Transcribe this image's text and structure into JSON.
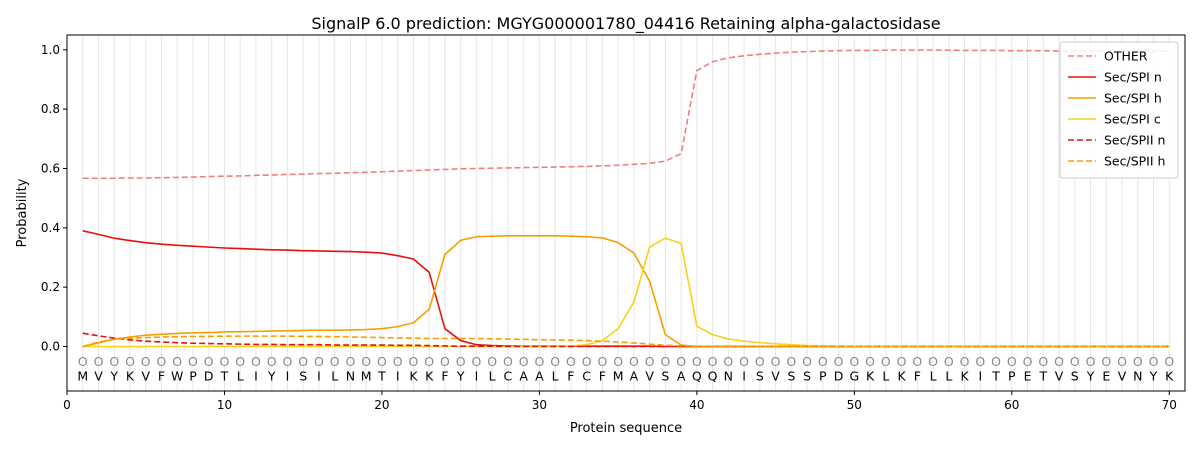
{
  "chart_data": {
    "type": "line",
    "title": "SignalP 6.0 prediction: MGYG000001780_04416 Retaining alpha-galactosidase",
    "xlabel": "Protein sequence",
    "ylabel": "Probability",
    "xlim": [
      0,
      71
    ],
    "ylim": [
      -0.15,
      1.05
    ],
    "xticks": [
      0,
      10,
      20,
      30,
      40,
      50,
      60,
      70
    ],
    "yticks": [
      0.0,
      0.2,
      0.4,
      0.6,
      0.8,
      1.0
    ],
    "ytick_labels": [
      "0.0",
      "0.2",
      "0.4",
      "0.6",
      "0.8",
      "1.0"
    ],
    "grid": "vertical lines at every residue",
    "legend_position": "top-right",
    "sequence": [
      "M",
      "V",
      "Y",
      "K",
      "V",
      "F",
      "W",
      "P",
      "D",
      "T",
      "L",
      "I",
      "Y",
      "I",
      "S",
      "I",
      "L",
      "N",
      "M",
      "T",
      "I",
      "K",
      "K",
      "F",
      "Y",
      "I",
      "L",
      "C",
      "A",
      "A",
      "L",
      "F",
      "C",
      "F",
      "M",
      "A",
      "V",
      "S",
      "A",
      "Q",
      "Q",
      "N",
      "I",
      "S",
      "V",
      "S",
      "S",
      "P",
      "D",
      "G",
      "K",
      "L",
      "K",
      "F",
      "L",
      "L",
      "K",
      "I",
      "T",
      "P",
      "E",
      "T",
      "V",
      "S",
      "Y",
      "E",
      "V",
      "N",
      "Y",
      "K"
    ],
    "region_marker": "O",
    "series": [
      {
        "name": "OTHER",
        "color": "#f08080",
        "dash": "dashed",
        "values": [
          0.567,
          0.567,
          0.567,
          0.568,
          0.568,
          0.569,
          0.57,
          0.571,
          0.573,
          0.574,
          0.575,
          0.577,
          0.578,
          0.58,
          0.581,
          0.583,
          0.584,
          0.586,
          0.587,
          0.589,
          0.591,
          0.593,
          0.595,
          0.597,
          0.599,
          0.6,
          0.601,
          0.602,
          0.603,
          0.604,
          0.605,
          0.606,
          0.607,
          0.609,
          0.611,
          0.614,
          0.617,
          0.625,
          0.65,
          0.93,
          0.96,
          0.973,
          0.98,
          0.985,
          0.989,
          0.992,
          0.994,
          0.996,
          0.997,
          0.998,
          0.998,
          0.999,
          0.999,
          0.999,
          0.999,
          0.999,
          0.998,
          0.998,
          0.998,
          0.997,
          0.997,
          0.997,
          0.996,
          0.996,
          0.996,
          0.996,
          0.995,
          0.995,
          0.995,
          0.995
        ]
      },
      {
        "name": "Sec/SPI n",
        "color": "#e8100c",
        "dash": "solid",
        "values": [
          0.39,
          0.378,
          0.365,
          0.357,
          0.35,
          0.345,
          0.341,
          0.338,
          0.335,
          0.332,
          0.33,
          0.328,
          0.326,
          0.325,
          0.323,
          0.322,
          0.321,
          0.32,
          0.318,
          0.315,
          0.306,
          0.295,
          0.25,
          0.06,
          0.02,
          0.006,
          0.003,
          0.002,
          0.001,
          0.001,
          0.001,
          0.001,
          0.001,
          0.001,
          0.001,
          0.001,
          0.001,
          0.0,
          0.0,
          0.0,
          0.0,
          0.0,
          0.0,
          0.0,
          0.0,
          0.0,
          0.0,
          0.0,
          0.0,
          0.0,
          0.0,
          0.0,
          0.0,
          0.0,
          0.0,
          0.0,
          0.0,
          0.0,
          0.0,
          0.0,
          0.0,
          0.0,
          0.0,
          0.0,
          0.0,
          0.0,
          0.0,
          0.0,
          0.0,
          0.0
        ]
      },
      {
        "name": "Sec/SPI h",
        "color": "#f5a000",
        "dash": "solid",
        "values": [
          0.0,
          0.012,
          0.025,
          0.032,
          0.038,
          0.041,
          0.044,
          0.046,
          0.047,
          0.049,
          0.05,
          0.051,
          0.052,
          0.053,
          0.054,
          0.055,
          0.055,
          0.056,
          0.057,
          0.06,
          0.067,
          0.08,
          0.125,
          0.31,
          0.358,
          0.37,
          0.372,
          0.373,
          0.373,
          0.373,
          0.373,
          0.372,
          0.37,
          0.366,
          0.35,
          0.315,
          0.22,
          0.04,
          0.005,
          0.0,
          0.0,
          0.0,
          0.0,
          0.0,
          0.0,
          0.0,
          0.0,
          0.0,
          0.0,
          0.0,
          0.0,
          0.0,
          0.0,
          0.0,
          0.0,
          0.0,
          0.0,
          0.0,
          0.0,
          0.0,
          0.0,
          0.0,
          0.0,
          0.0,
          0.0,
          0.0,
          0.0,
          0.0,
          0.0,
          0.0
        ]
      },
      {
        "name": "Sec/SPI c",
        "color": "#f7d21b",
        "dash": "solid",
        "values": [
          0.0,
          0.0,
          0.0,
          0.0,
          0.0,
          0.0,
          0.0,
          0.0,
          0.0,
          0.0,
          0.0,
          0.0,
          0.0,
          0.0,
          0.0,
          0.0,
          0.0,
          0.0,
          0.0,
          0.0,
          0.0,
          0.0,
          0.0,
          0.0,
          0.0,
          0.0,
          0.0,
          0.0,
          0.0,
          0.0,
          0.0,
          0.002,
          0.006,
          0.02,
          0.06,
          0.15,
          0.335,
          0.365,
          0.348,
          0.068,
          0.04,
          0.025,
          0.018,
          0.013,
          0.009,
          0.006,
          0.003,
          0.002,
          0.001,
          0.001,
          0.0,
          0.0,
          0.0,
          0.0,
          0.0,
          0.0,
          0.0,
          0.0,
          0.0,
          0.0,
          0.0,
          0.0,
          0.0,
          0.0,
          0.0,
          0.0,
          0.0,
          0.0,
          0.0,
          0.0
        ]
      },
      {
        "name": "Sec/SPII n",
        "color": "#e8100c",
        "dash": "dashed",
        "values": [
          0.045,
          0.036,
          0.028,
          0.022,
          0.018,
          0.015,
          0.013,
          0.011,
          0.01,
          0.009,
          0.008,
          0.007,
          0.007,
          0.006,
          0.006,
          0.006,
          0.005,
          0.005,
          0.005,
          0.005,
          0.004,
          0.004,
          0.003,
          0.002,
          0.001,
          0.001,
          0.001,
          0.0,
          0.0,
          0.0,
          0.0,
          0.0,
          0.0,
          0.0,
          0.0,
          0.0,
          0.0,
          0.0,
          0.0,
          0.0,
          0.0,
          0.0,
          0.0,
          0.0,
          0.0,
          0.0,
          0.0,
          0.0,
          0.0,
          0.0,
          0.0,
          0.0,
          0.0,
          0.0,
          0.0,
          0.0,
          0.0,
          0.0,
          0.0,
          0.0,
          0.0,
          0.0,
          0.0,
          0.0,
          0.0,
          0.0,
          0.0,
          0.0,
          0.0,
          0.0
        ]
      },
      {
        "name": "Sec/SPII h",
        "color": "#f5a000",
        "dash": "dashed",
        "values": [
          0.0,
          0.015,
          0.024,
          0.028,
          0.03,
          0.032,
          0.033,
          0.034,
          0.034,
          0.035,
          0.035,
          0.035,
          0.035,
          0.035,
          0.034,
          0.034,
          0.033,
          0.032,
          0.031,
          0.03,
          0.029,
          0.028,
          0.027,
          0.027,
          0.027,
          0.027,
          0.026,
          0.025,
          0.024,
          0.023,
          0.022,
          0.021,
          0.02,
          0.018,
          0.015,
          0.012,
          0.008,
          0.004,
          0.002,
          0.001,
          0.0,
          0.0,
          0.0,
          0.0,
          0.0,
          0.0,
          0.0,
          0.0,
          0.0,
          0.0,
          0.0,
          0.0,
          0.0,
          0.0,
          0.0,
          0.0,
          0.0,
          0.0,
          0.0,
          0.0,
          0.0,
          0.0,
          0.0,
          0.0,
          0.0,
          0.0,
          0.0,
          0.0,
          0.0,
          0.0
        ]
      }
    ]
  }
}
